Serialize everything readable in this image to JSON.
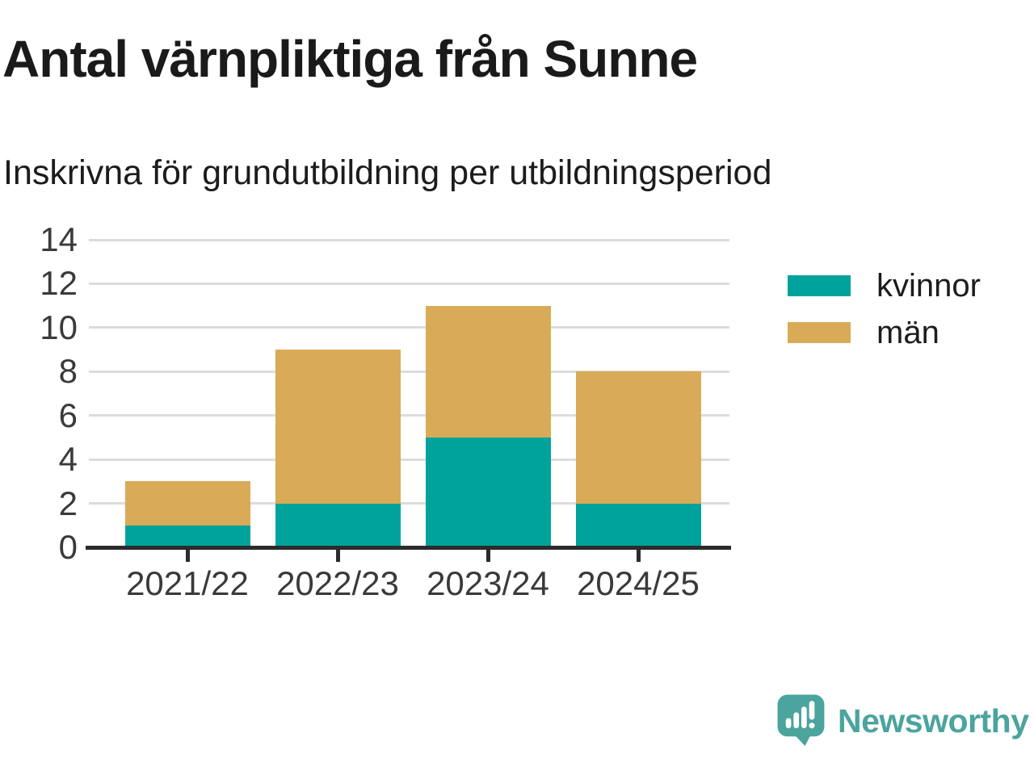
{
  "chart_data": {
    "type": "bar",
    "stacked": true,
    "title": "Antal värnpliktiga från Sunne",
    "subtitle": "Inskrivna för grundutbildning per utbildningsperiod",
    "categories": [
      "2021/22",
      "2022/23",
      "2023/24",
      "2024/25"
    ],
    "series": [
      {
        "name": "kvinnor",
        "color": "#00A39B",
        "values": [
          1,
          2,
          5,
          2
        ]
      },
      {
        "name": "män",
        "color": "#D9AA58",
        "values": [
          2,
          7,
          6,
          6
        ]
      }
    ],
    "totals": [
      3,
      9,
      11,
      8
    ],
    "xlabel": "",
    "ylabel": "",
    "ylim": [
      0,
      14
    ],
    "yticks": [
      0,
      2,
      4,
      6,
      8,
      10,
      12,
      14
    ],
    "grid": true,
    "legend_position": "right"
  },
  "colors": {
    "grid": "#DCDCDC",
    "axis": "#2B2B2B",
    "tick_label": "#3A3A3A"
  },
  "footer": {
    "logo_text": "Newsworthy",
    "logo_color": "#4BA49D",
    "logo_shade_color": "#41918A"
  }
}
